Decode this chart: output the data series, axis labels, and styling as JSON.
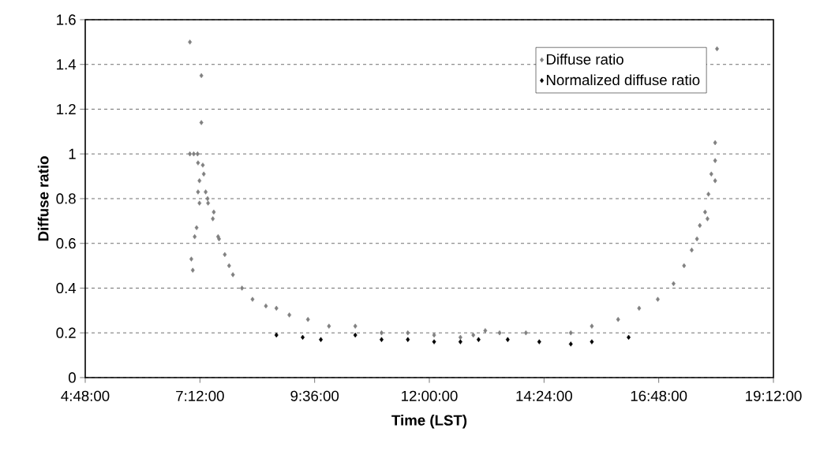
{
  "chart_data": {
    "type": "scatter",
    "xlabel": "Time (LST)",
    "ylabel": "Diffuse ratio",
    "xlim": [
      4.8,
      19.2
    ],
    "xticks": [
      {
        "value": 4.8,
        "label": "4:48:00"
      },
      {
        "value": 7.2,
        "label": "7:12:00"
      },
      {
        "value": 9.6,
        "label": "9:36:00"
      },
      {
        "value": 12.0,
        "label": "12:00:00"
      },
      {
        "value": 14.4,
        "label": "14:24:00"
      },
      {
        "value": 16.8,
        "label": "16:48:00"
      },
      {
        "value": 19.2,
        "label": "19:12:00"
      }
    ],
    "ylim": [
      0,
      1.6
    ],
    "yticks": [
      0,
      0.2,
      0.4,
      0.6,
      0.8,
      1,
      1.2,
      1.4,
      1.6
    ],
    "grid": "y",
    "legend": "top right",
    "marker": "diamond",
    "series": [
      {
        "name": "Diffuse ratio",
        "color": "#808080",
        "x": [
          6.99,
          7.23,
          7.23,
          6.99,
          7.07,
          7.15,
          7.16,
          7.26,
          7.28,
          7.19,
          7.16,
          7.32,
          7.19,
          7.37,
          7.13,
          7.09,
          7.02,
          7.05,
          7.36,
          7.47,
          7.49,
          7.58,
          7.6,
          7.72,
          7.81,
          7.89,
          8.08,
          8.3,
          8.58,
          8.8,
          9.07,
          9.46,
          9.9,
          10.45,
          11.0,
          11.55,
          12.1,
          12.65,
          12.92,
          13.17,
          13.47,
          14.02,
          14.96,
          15.4,
          15.95,
          16.39,
          16.78,
          17.11,
          17.33,
          17.49,
          17.6,
          17.66,
          17.77,
          17.82,
          17.84,
          17.9,
          17.98,
          17.98,
          17.98,
          18.02
        ],
        "values": [
          1.5,
          1.35,
          1.14,
          1.0,
          1.0,
          1.0,
          0.96,
          0.95,
          0.91,
          0.88,
          0.83,
          0.83,
          0.78,
          0.78,
          0.67,
          0.63,
          0.53,
          0.48,
          0.8,
          0.71,
          0.74,
          0.63,
          0.62,
          0.55,
          0.5,
          0.46,
          0.4,
          0.35,
          0.32,
          0.31,
          0.28,
          0.26,
          0.23,
          0.23,
          0.2,
          0.2,
          0.19,
          0.18,
          0.19,
          0.21,
          0.2,
          0.2,
          0.2,
          0.23,
          0.26,
          0.31,
          0.35,
          0.42,
          0.5,
          0.57,
          0.62,
          0.68,
          0.74,
          0.71,
          0.82,
          0.91,
          0.97,
          0.88,
          1.05,
          1.47
        ]
      },
      {
        "name": "Normalized diffuse ratio",
        "color": "#000000",
        "x": [
          8.8,
          9.35,
          9.73,
          10.45,
          11.0,
          11.55,
          12.1,
          12.65,
          13.03,
          13.64,
          14.3,
          14.96,
          15.4,
          16.17
        ],
        "values": [
          0.19,
          0.18,
          0.17,
          0.19,
          0.17,
          0.17,
          0.16,
          0.16,
          0.17,
          0.17,
          0.16,
          0.15,
          0.16,
          0.18
        ]
      }
    ]
  }
}
